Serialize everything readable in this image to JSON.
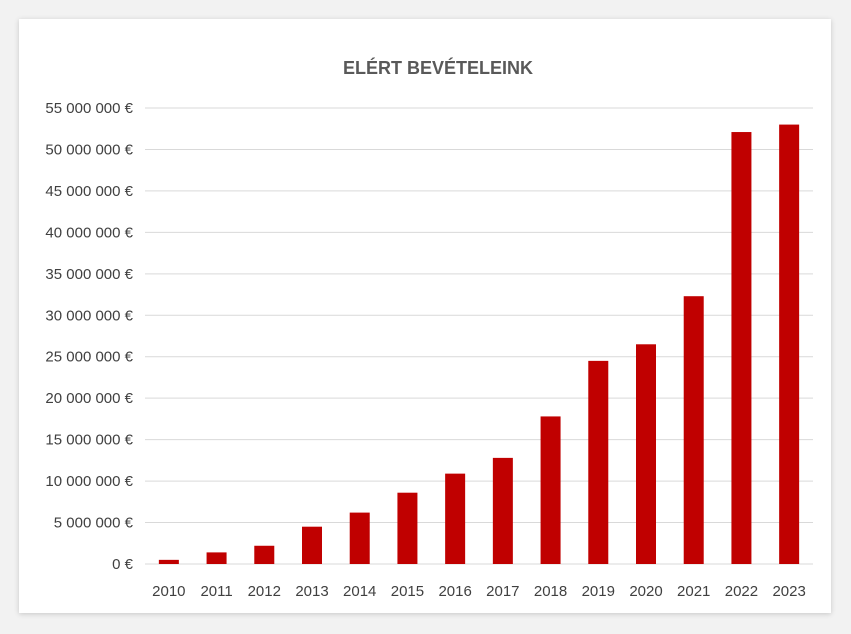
{
  "chart_data": {
    "type": "bar",
    "title": "ELÉRT BEVÉTELEINK",
    "xlabel": "",
    "ylabel": "",
    "categories": [
      "2010",
      "2011",
      "2012",
      "2013",
      "2014",
      "2015",
      "2016",
      "2017",
      "2018",
      "2019",
      "2020",
      "2021",
      "2022",
      "2023"
    ],
    "values": [
      500000,
      1400000,
      2200000,
      4500000,
      6200000,
      8600000,
      10900000,
      12800000,
      17800000,
      24500000,
      26500000,
      32300000,
      52100000,
      53000000
    ],
    "ylim": [
      0,
      55000000
    ],
    "yticks": [
      0,
      5000000,
      10000000,
      15000000,
      20000000,
      25000000,
      30000000,
      35000000,
      40000000,
      45000000,
      50000000,
      55000000
    ],
    "ytick_labels": [
      "0 €",
      "5 000 000 €",
      "10 000 000 €",
      "15 000 000 €",
      "20 000 000 €",
      "25 000 000 €",
      "30 000 000 €",
      "35 000 000 €",
      "40 000 000 €",
      "45 000 000 €",
      "50 000 000 €",
      "55 000 000 €"
    ],
    "grid": true,
    "legend": "none",
    "bar_color": "#c00000",
    "grid_color": "#d9d9d9"
  }
}
